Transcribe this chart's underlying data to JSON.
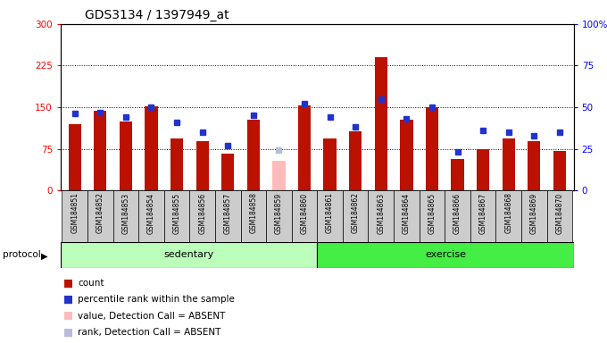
{
  "title": "GDS3134 / 1397949_at",
  "samples": [
    "GSM184851",
    "GSM184852",
    "GSM184853",
    "GSM184854",
    "GSM184855",
    "GSM184856",
    "GSM184857",
    "GSM184858",
    "GSM184859",
    "GSM184860",
    "GSM184861",
    "GSM184862",
    "GSM184863",
    "GSM184864",
    "GSM184865",
    "GSM184866",
    "GSM184867",
    "GSM184868",
    "GSM184869",
    "GSM184870"
  ],
  "counts": [
    120,
    143,
    124,
    152,
    93,
    89,
    67,
    127,
    null,
    153,
    93,
    107,
    240,
    127,
    150,
    57,
    74,
    94,
    89,
    71
  ],
  "ranks": [
    46,
    47,
    44,
    50,
    41,
    35,
    27,
    45,
    null,
    52,
    44,
    38,
    55,
    43,
    50,
    23,
    36,
    35,
    33,
    35
  ],
  "absent_count_vals": [
    null,
    null,
    null,
    null,
    null,
    null,
    null,
    null,
    54,
    null,
    null,
    null,
    null,
    null,
    null,
    null,
    null,
    null,
    null,
    null
  ],
  "absent_rank_vals": [
    null,
    null,
    null,
    null,
    null,
    null,
    null,
    null,
    24,
    null,
    null,
    null,
    null,
    null,
    null,
    null,
    null,
    null,
    null,
    null
  ],
  "ylim_left": [
    0,
    300
  ],
  "ylim_right": [
    0,
    100
  ],
  "yticks_left": [
    0,
    75,
    150,
    225,
    300
  ],
  "yticks_right": [
    0,
    25,
    50,
    75,
    100
  ],
  "bar_color_red": "#BB1100",
  "bar_color_absent": "#FFBBBB",
  "dot_color_blue": "#2233CC",
  "dot_color_abs_rank": "#BBBBDD",
  "bg_label": "#CCCCCC",
  "bg_sedentary": "#BBFFBB",
  "bg_exercise": "#44EE44",
  "sedentary_label": "sedentary",
  "exercise_label": "exercise",
  "protocol_label": "protocol",
  "legend_items": [
    {
      "color": "#BB1100",
      "label": "count"
    },
    {
      "color": "#2233CC",
      "label": "percentile rank within the sample"
    },
    {
      "color": "#FFBBBB",
      "label": "value, Detection Call = ABSENT"
    },
    {
      "color": "#BBBBDD",
      "label": "rank, Detection Call = ABSENT"
    }
  ]
}
